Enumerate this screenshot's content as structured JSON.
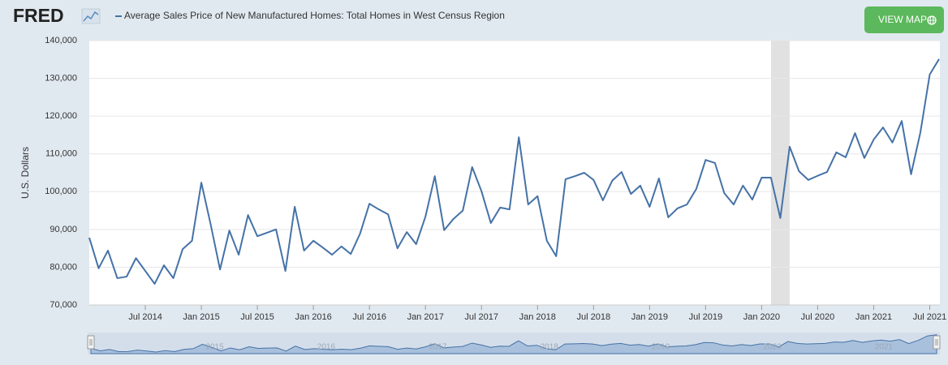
{
  "header": {
    "logo": "FRED",
    "button": "VIEW MAP"
  },
  "chart_data": {
    "type": "line",
    "y_label": "U.S. Dollars",
    "x": [
      "2014-01",
      "2014-02",
      "2014-03",
      "2014-04",
      "2014-05",
      "2014-06",
      "2014-07",
      "2014-08",
      "2014-09",
      "2014-10",
      "2014-11",
      "2014-12",
      "2015-01",
      "2015-02",
      "2015-03",
      "2015-04",
      "2015-05",
      "2015-06",
      "2015-07",
      "2015-08",
      "2015-09",
      "2015-10",
      "2015-11",
      "2015-12",
      "2016-01",
      "2016-02",
      "2016-03",
      "2016-04",
      "2016-05",
      "2016-06",
      "2016-07",
      "2016-08",
      "2016-09",
      "2016-10",
      "2016-11",
      "2016-12",
      "2017-01",
      "2017-02",
      "2017-03",
      "2017-04",
      "2017-05",
      "2017-06",
      "2017-07",
      "2017-08",
      "2017-09",
      "2017-10",
      "2017-11",
      "2017-12",
      "2018-01",
      "2018-02",
      "2018-03",
      "2018-04",
      "2018-05",
      "2018-06",
      "2018-07",
      "2018-08",
      "2018-09",
      "2018-10",
      "2018-11",
      "2018-12",
      "2019-01",
      "2019-02",
      "2019-03",
      "2019-04",
      "2019-05",
      "2019-06",
      "2019-07",
      "2019-08",
      "2019-09",
      "2019-10",
      "2019-11",
      "2019-12",
      "2020-01",
      "2020-02",
      "2020-03",
      "2020-04",
      "2020-05",
      "2020-06",
      "2020-07",
      "2020-08",
      "2020-09",
      "2020-10",
      "2020-11",
      "2020-12",
      "2021-01",
      "2021-02",
      "2021-03",
      "2021-04",
      "2021-05",
      "2021-06",
      "2021-07",
      "2021-08"
    ],
    "series": [
      {
        "name": "Average Sales Price of New Manufactured Homes: Total Homes in West Census Region",
        "color": "#4572a7",
        "values": [
          87800,
          79700,
          84400,
          77100,
          77500,
          82400,
          79000,
          75600,
          80500,
          77100,
          84800,
          87000,
          102400,
          91300,
          79400,
          89700,
          83300,
          93800,
          88200,
          89100,
          90000,
          79000,
          96000,
          84400,
          87000,
          85200,
          83300,
          85500,
          83500,
          88900,
          96800,
          95300,
          94000,
          85000,
          89300,
          86100,
          93400,
          104100,
          89800,
          92800,
          95000,
          106500,
          100100,
          91700,
          95800,
          95300,
          114400,
          96600,
          98800,
          87000,
          82900,
          103300,
          104100,
          105000,
          103100,
          97700,
          102900,
          105200,
          99400,
          101600,
          96000,
          103500,
          93200,
          95600,
          96600,
          100700,
          108400,
          107600,
          99600,
          96600,
          101600,
          97900,
          103700,
          103700,
          93000,
          111900,
          105400,
          103100,
          104200,
          105200,
          110400,
          109100,
          115500,
          108900,
          113800,
          117000,
          113000,
          118700,
          104600,
          115700,
          131000,
          135100
        ]
      }
    ],
    "xlim": [
      "2014-01",
      "2021-08"
    ],
    "xticks": [
      {
        "value": "2014-07",
        "label": "Jul 2014"
      },
      {
        "value": "2015-01",
        "label": "Jan 2015"
      },
      {
        "value": "2015-07",
        "label": "Jul 2015"
      },
      {
        "value": "2016-01",
        "label": "Jan 2016"
      },
      {
        "value": "2016-07",
        "label": "Jul 2016"
      },
      {
        "value": "2017-01",
        "label": "Jan 2017"
      },
      {
        "value": "2017-07",
        "label": "Jul 2017"
      },
      {
        "value": "2018-01",
        "label": "Jan 2018"
      },
      {
        "value": "2018-07",
        "label": "Jul 2018"
      },
      {
        "value": "2019-01",
        "label": "Jan 2019"
      },
      {
        "value": "2019-07",
        "label": "Jul 2019"
      },
      {
        "value": "2020-01",
        "label": "Jan 2020"
      },
      {
        "value": "2020-07",
        "label": "Jul 2020"
      },
      {
        "value": "2021-01",
        "label": "Jan 2021"
      },
      {
        "value": "2021-07",
        "label": "Jul 2021"
      }
    ],
    "ylim": [
      70000,
      140000
    ],
    "yticks": [
      {
        "value": 70000,
        "label": "70,000"
      },
      {
        "value": 80000,
        "label": "80,000"
      },
      {
        "value": 90000,
        "label": "90,000"
      },
      {
        "value": 100000,
        "label": "100,000"
      },
      {
        "value": 110000,
        "label": "110,000"
      },
      {
        "value": 120000,
        "label": "120,000"
      },
      {
        "value": 130000,
        "label": "130,000"
      },
      {
        "value": 140000,
        "label": "140,000"
      }
    ],
    "grid": true,
    "recessions": [
      {
        "start": "2020-02",
        "end": "2020-04"
      }
    ],
    "navigator_ticks": [
      {
        "value": "2015-01",
        "label": "2015"
      },
      {
        "value": "2016-01",
        "label": "2016"
      },
      {
        "value": "2017-01",
        "label": "2017"
      },
      {
        "value": "2018-01",
        "label": "2018"
      },
      {
        "value": "2019-01",
        "label": "2019"
      },
      {
        "value": "2020-01",
        "label": "2020"
      },
      {
        "value": "2021-01",
        "label": "2021"
      }
    ]
  }
}
